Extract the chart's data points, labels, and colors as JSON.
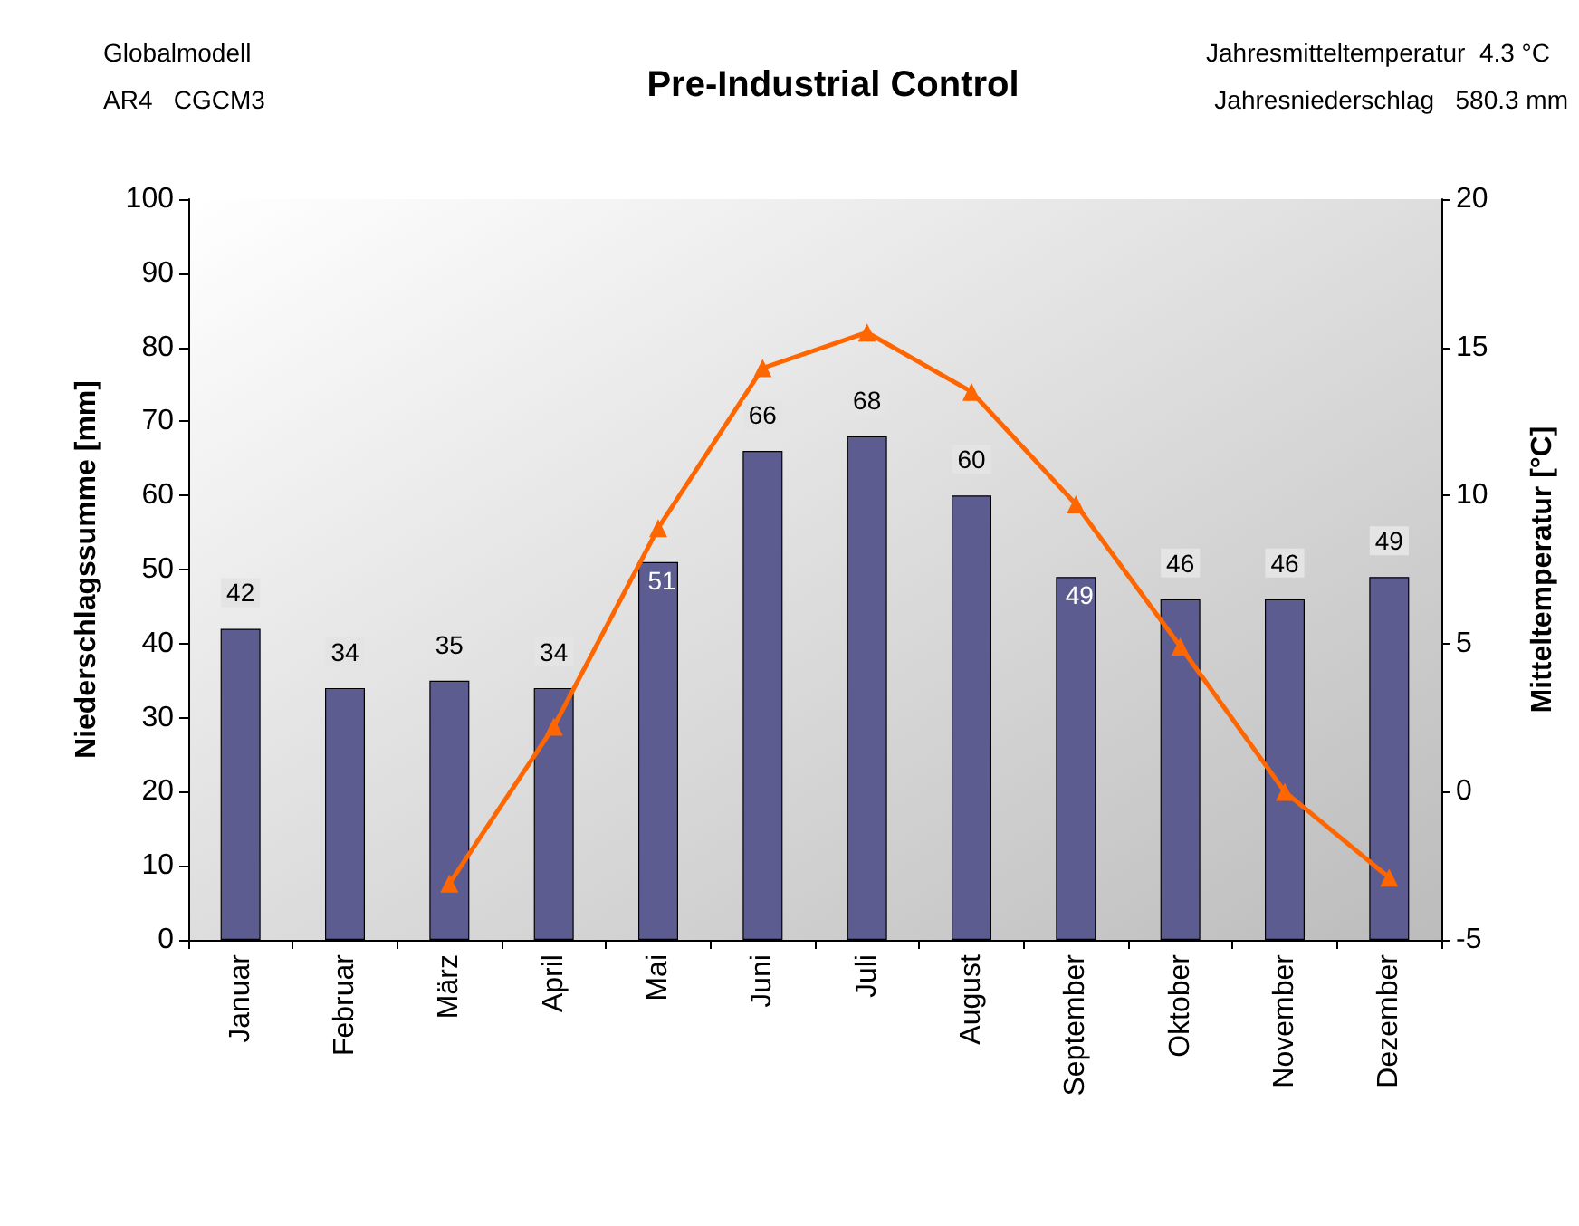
{
  "chart_data": {
    "type": "bar",
    "title": "Pre-Industrial Control",
    "categories": [
      "Januar",
      "Februar",
      "März",
      "April",
      "Mai",
      "Juni",
      "Juli",
      "August",
      "September",
      "Oktober",
      "November",
      "Dezember"
    ],
    "series": [
      {
        "color": "#5c5c90",
        "values": [
          42,
          34,
          35,
          34,
          51,
          66,
          68,
          60,
          49,
          46,
          46,
          49
        ],
        "value_labels": [
          "42",
          "34",
          "35",
          "34",
          "51",
          "66",
          "68",
          "60",
          "49",
          "46",
          "46",
          "49"
        ]
      },
      {
        "type": "line",
        "axis": "y2",
        "color": "#ff6600",
        "values": [
          null,
          null,
          -3.1,
          2.2,
          8.9,
          14.3,
          15.5,
          13.5,
          9.7,
          4.9,
          0.0,
          -2.9
        ]
      }
    ],
    "ylabel": "Niederschlagssumme [mm]",
    "y2label": "Mitteltemperatur [°C]",
    "ylim": [
      0,
      100
    ],
    "yticks": [
      0,
      10,
      20,
      30,
      40,
      50,
      60,
      70,
      80,
      90,
      100
    ],
    "y2lim": [
      -5,
      20
    ],
    "y2ticks": [
      -5,
      0,
      5,
      10,
      15,
      20
    ],
    "marker": "triangle",
    "line_style": "solid",
    "grid": false,
    "annotations": [
      "Globalmodell",
      "AR4   CGCM3",
      "Jahresmitteltemperatur  4.3 °C",
      "Jahresniederschlag   580.3 mm"
    ]
  }
}
